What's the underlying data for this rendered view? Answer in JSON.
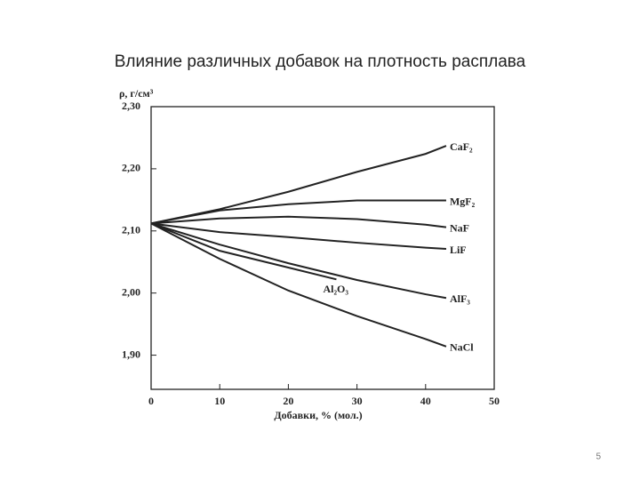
{
  "chart_data": {
    "type": "line",
    "title": "Влияние различных добавок на плотность расплава",
    "ylabel": "ρ, г/см³",
    "xlabel": "Добавки, % (мол.)",
    "xlim": [
      0,
      50
    ],
    "xticks": [
      0,
      10,
      20,
      30,
      40,
      50
    ],
    "ylim": [
      1.845,
      2.3
    ],
    "yticks": [
      {
        "value": 1.9,
        "label": "1,90"
      },
      {
        "value": 2.0,
        "label": "2,00"
      },
      {
        "value": 2.1,
        "label": "2,10"
      },
      {
        "value": 2.2,
        "label": "2,20"
      },
      {
        "value": 2.3,
        "label": "2,30"
      }
    ],
    "series": [
      {
        "name": "CaF₂",
        "color": "#222222",
        "x": [
          0,
          10,
          20,
          30,
          40,
          43
        ],
        "values": [
          2.112,
          2.135,
          2.163,
          2.195,
          2.224,
          2.237
        ]
      },
      {
        "name": "MgF₂",
        "color": "#222222",
        "x": [
          0,
          10,
          20,
          30,
          40,
          43
        ],
        "values": [
          2.112,
          2.133,
          2.143,
          2.149,
          2.149,
          2.149
        ]
      },
      {
        "name": "NaF",
        "color": "#222222",
        "x": [
          0,
          10,
          20,
          30,
          40,
          43
        ],
        "values": [
          2.112,
          2.12,
          2.123,
          2.119,
          2.11,
          2.106
        ]
      },
      {
        "name": "LiF",
        "color": "#222222",
        "x": [
          0,
          10,
          20,
          30,
          40,
          43
        ],
        "values": [
          2.112,
          2.098,
          2.09,
          2.081,
          2.073,
          2.071
        ]
      },
      {
        "name": "AlF₃",
        "color": "#222222",
        "x": [
          0,
          10,
          20,
          30,
          40,
          43
        ],
        "values": [
          2.112,
          2.078,
          2.048,
          2.021,
          1.998,
          1.992
        ]
      },
      {
        "name": "Al₂O₃",
        "color": "#222222",
        "x": [
          0,
          10,
          20,
          27
        ],
        "values": [
          2.112,
          2.068,
          2.041,
          2.022
        ]
      },
      {
        "name": "NaCl",
        "color": "#222222",
        "x": [
          0,
          10,
          20,
          30,
          40,
          43
        ],
        "values": [
          2.112,
          2.055,
          2.004,
          1.963,
          1.926,
          1.914
        ]
      }
    ]
  },
  "page_number": "5"
}
